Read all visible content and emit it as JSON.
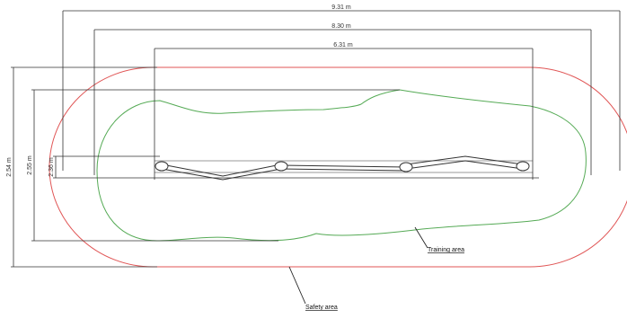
{
  "dimensions": {
    "outer_width": "9.31 m",
    "middle_width": "8.30 m",
    "inner_width": "6.31 m",
    "outer_height": "2.54 m",
    "middle_height": "2.55 m",
    "inner_height": "2.36 m"
  },
  "labels": {
    "training_area": "Training area",
    "safety_area": "Safety area"
  },
  "colors": {
    "safety_boundary": "#e05555",
    "training_boundary": "#55aa55",
    "dimension": "#333333",
    "equipment": "#333333"
  }
}
